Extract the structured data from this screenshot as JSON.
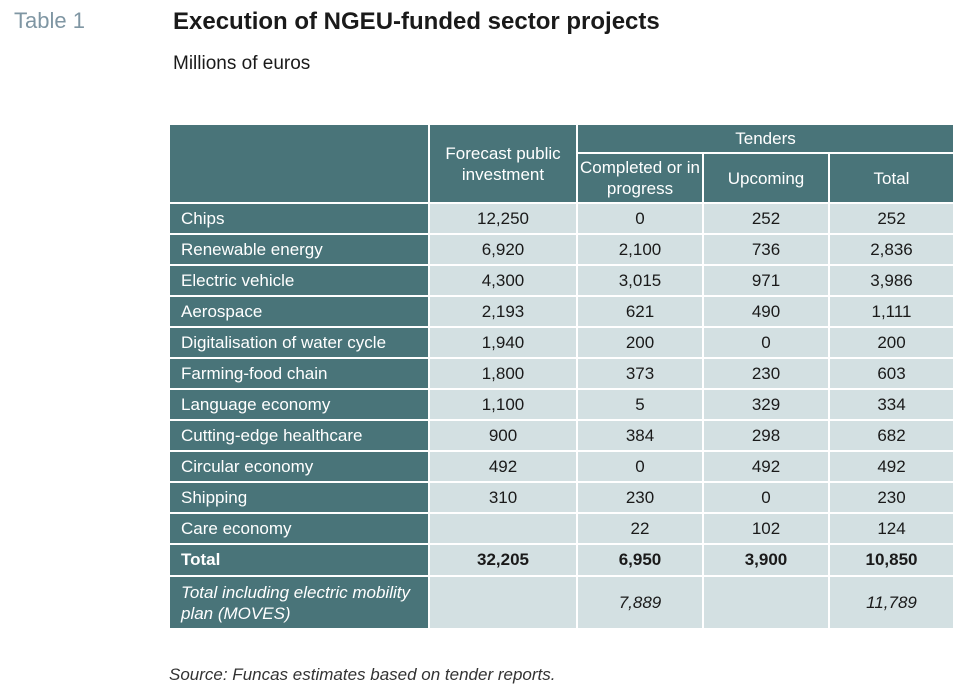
{
  "header": {
    "table_tag": "Table 1",
    "title": "Execution of NGEU-funded sector projects",
    "subtitle": "Millions of euros"
  },
  "columns": {
    "forecast": "Forecast public investment",
    "tenders": "Tenders",
    "completed": "Completed or in progress",
    "upcoming": "Upcoming",
    "total": "Total"
  },
  "rows": [
    {
      "label": "Chips",
      "forecast": "12,250",
      "completed": "0",
      "upcoming": "252",
      "total": "252"
    },
    {
      "label": "Renewable energy",
      "forecast": "6,920",
      "completed": "2,100",
      "upcoming": "736",
      "total": "2,836"
    },
    {
      "label": "Electric vehicle",
      "forecast": "4,300",
      "completed": "3,015",
      "upcoming": "971",
      "total": "3,986"
    },
    {
      "label": "Aerospace",
      "forecast": "2,193",
      "completed": "621",
      "upcoming": "490",
      "total": "1,111"
    },
    {
      "label": "Digitalisation of water cycle",
      "forecast": "1,940",
      "completed": "200",
      "upcoming": "0",
      "total": "200"
    },
    {
      "label": "Farming-food chain",
      "forecast": "1,800",
      "completed": "373",
      "upcoming": "230",
      "total": "603"
    },
    {
      "label": "Language economy",
      "forecast": "1,100",
      "completed": "5",
      "upcoming": "329",
      "total": "334"
    },
    {
      "label": "Cutting-edge healthcare",
      "forecast": "900",
      "completed": "384",
      "upcoming": "298",
      "total": "682"
    },
    {
      "label": "Circular economy",
      "forecast": "492",
      "completed": "0",
      "upcoming": "492",
      "total": "492"
    },
    {
      "label": "Shipping",
      "forecast": "310",
      "completed": "230",
      "upcoming": "0",
      "total": "230"
    },
    {
      "label": "Care economy",
      "forecast": "",
      "completed": "22",
      "upcoming": "102",
      "total": "124"
    }
  ],
  "total_row": {
    "label": "Total",
    "forecast": "32,205",
    "completed": "6,950",
    "upcoming": "3,900",
    "total": "10,850"
  },
  "moves_row": {
    "label": "Total including electric mobility plan (MOVES)",
    "forecast": "",
    "completed": "7,889",
    "upcoming": "",
    "total": "11,789"
  },
  "source": "Source: Funcas estimates based on tender reports.",
  "colors": {
    "header_bg": "#497479",
    "cell_bg": "#d3e0e2",
    "tag_color": "#7f96a3"
  }
}
